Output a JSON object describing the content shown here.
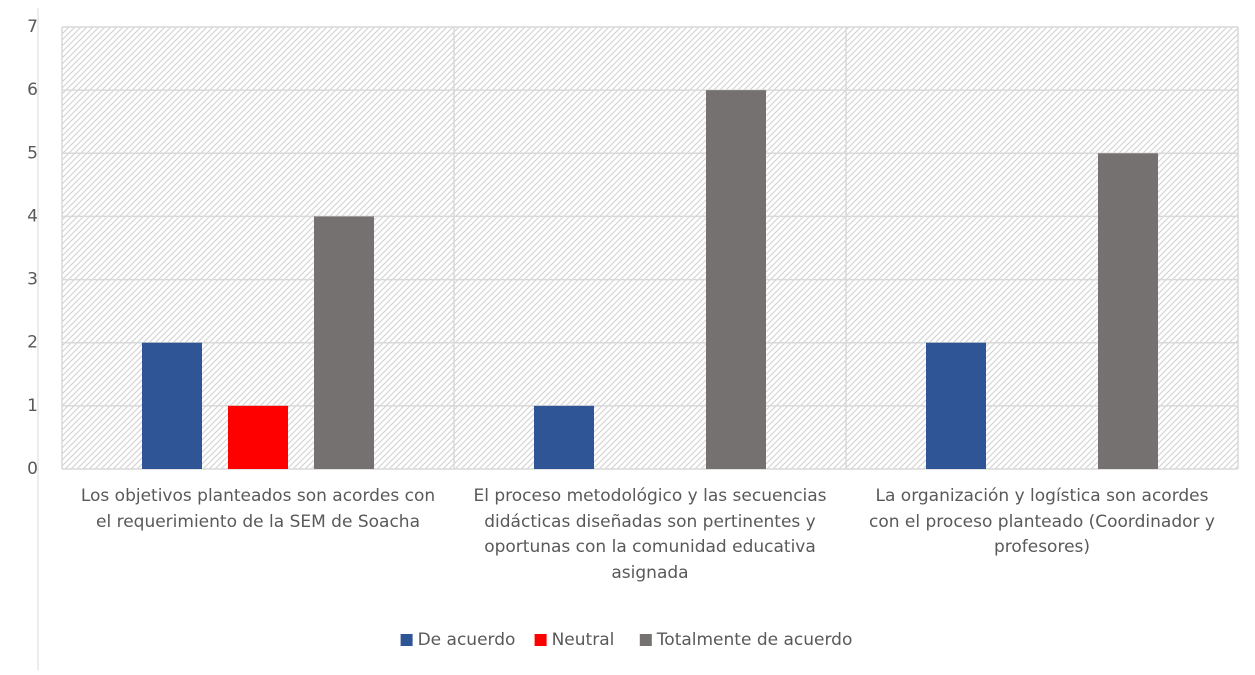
{
  "chart_data": {
    "type": "bar",
    "categories": [
      "Los objetivos planteados son acordes con el requerimiento de la SEM de Soacha",
      "El proceso metodológico y las secuencias didácticas diseñadas son pertinentes y oportunas con la comunidad educativa asignada",
      "La organización y logística son acordes con el proceso planteado (Coordinador y profesores)"
    ],
    "series": [
      {
        "name": "De acuerdo",
        "color": "#2f5597",
        "values": [
          2,
          1,
          2
        ]
      },
      {
        "name": "Neutral",
        "color": "#ff0000",
        "values": [
          1,
          null,
          null
        ]
      },
      {
        "name": "Totalmente de acuerdo",
        "color": "#767171",
        "values": [
          4,
          6,
          5
        ]
      }
    ],
    "ylim": [
      0,
      7
    ],
    "yticks": [
      0,
      1,
      2,
      3,
      4,
      5,
      6,
      7
    ],
    "grid": true,
    "legend": "bottom"
  }
}
